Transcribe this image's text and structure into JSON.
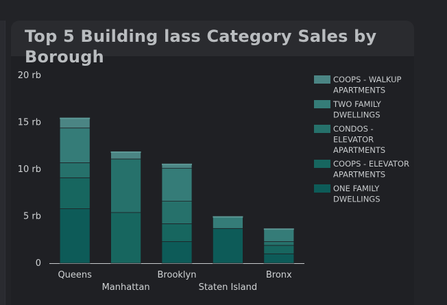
{
  "card": {
    "title": "Top 5 Building lass Category Sales by Borough"
  },
  "chart_data": {
    "type": "bar",
    "stacked": true,
    "title": "Top 5 Building lass Category Sales by Borough",
    "xlabel": "",
    "ylabel": "",
    "categories": [
      "Queens",
      "Manhattan",
      "Brooklyn",
      "Staten Island",
      "Bronx"
    ],
    "ylim": [
      0,
      20000
    ],
    "yticks": [
      {
        "value": 0,
        "label": "0"
      },
      {
        "value": 5000,
        "label": "5 rb"
      },
      {
        "value": 10000,
        "label": "10 rb"
      },
      {
        "value": 15000,
        "label": "15 rb"
      },
      {
        "value": 20000,
        "label": "20 rb"
      }
    ],
    "legend_position": "right",
    "series": [
      {
        "name": "ONE FAMILY DWELLINGS",
        "color": "#0d5b58",
        "values": [
          5800,
          0,
          2300,
          3700,
          1000
        ]
      },
      {
        "name": "COOPS - ELEVATOR APARTMENTS",
        "color": "#17665f",
        "values": [
          3300,
          5400,
          1900,
          0,
          900
        ]
      },
      {
        "name": "CONDOS - ELEVATOR APARTMENTS",
        "color": "#26716b",
        "values": [
          1600,
          5700,
          2400,
          0,
          400
        ]
      },
      {
        "name": "TWO FAMILY DWELLINGS",
        "color": "#357c78",
        "values": [
          3700,
          0,
          3500,
          1300,
          1300
        ]
      },
      {
        "name": "COOPS - WALKUP APARTMENTS",
        "color": "#4b8584",
        "values": [
          1100,
          800,
          500,
          0,
          100
        ]
      }
    ]
  },
  "legend": {
    "items": [
      {
        "line1": "COOPS - WALKUP",
        "line2": "APARTMENTS",
        "line3": "",
        "color": "#4b8584"
      },
      {
        "line1": "TWO FAMILY",
        "line2": "DWELLINGS",
        "line3": "",
        "color": "#357c78"
      },
      {
        "line1": "CONDOS -",
        "line2": "ELEVATOR",
        "line3": "APARTMENTS",
        "color": "#26716b"
      },
      {
        "line1": "COOPS - ELEVATOR",
        "line2": "APARTMENTS",
        "line3": "",
        "color": "#17665f"
      },
      {
        "line1": "ONE FAMILY",
        "line2": "DWELLINGS",
        "line3": "",
        "color": "#0d5b58"
      }
    ]
  }
}
